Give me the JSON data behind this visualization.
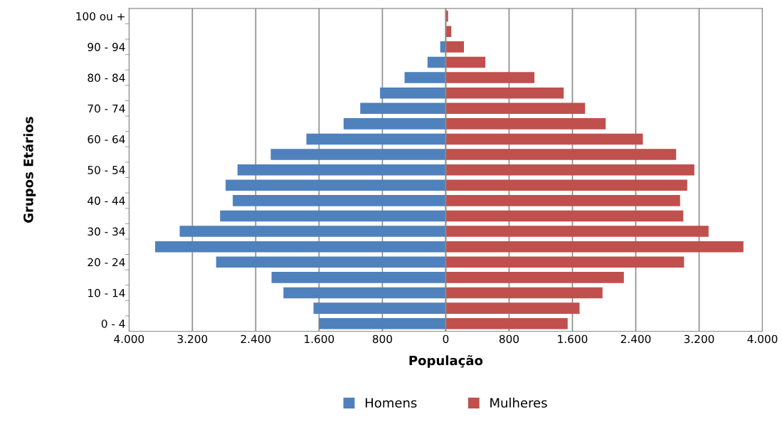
{
  "chart_data": {
    "type": "bar",
    "orientation": "horizontal",
    "xlabel": "População",
    "ylabel": "Grupos Etários",
    "categories": [
      "100 ou +",
      null,
      "90 - 94",
      null,
      "80 - 84",
      null,
      "70 - 74",
      null,
      "60 - 64",
      null,
      "50 - 54",
      null,
      "40 - 44",
      null,
      "30 - 34",
      null,
      "20 - 24",
      null,
      "10 - 14",
      null,
      "0 - 4"
    ],
    "series": [
      {
        "name": "Homens",
        "color": "#4f81bd",
        "values": [
          0,
          0,
          -70,
          -230,
          -520,
          -830,
          -1080,
          -1290,
          -1760,
          -2210,
          -2630,
          -2780,
          -2690,
          -2850,
          -3360,
          -3670,
          -2900,
          -2200,
          -2050,
          -1670,
          -1600
        ]
      },
      {
        "name": "Mulheres",
        "color": "#c0504d",
        "values": [
          30,
          70,
          230,
          500,
          1120,
          1490,
          1760,
          2020,
          2490,
          2910,
          3140,
          3050,
          2960,
          3000,
          3320,
          3760,
          3010,
          2250,
          1980,
          1690,
          1540
        ]
      }
    ],
    "xlim": [
      -4000,
      4000
    ],
    "xticks": [
      {
        "value": -4000,
        "label": "4.000"
      },
      {
        "value": -3200,
        "label": "3.200"
      },
      {
        "value": -2400,
        "label": "2.400"
      },
      {
        "value": -1600,
        "label": "1.600"
      },
      {
        "value": -800,
        "label": "800"
      },
      0,
      800,
      {
        "value": 1600,
        "label": "1.600"
      },
      {
        "value": 2400,
        "label": "2.400"
      },
      {
        "value": 3200,
        "label": "3.200"
      },
      {
        "value": 4000,
        "label": "4.000"
      }
    ],
    "grid": "x",
    "legend": "bottom",
    "stacked": true
  }
}
